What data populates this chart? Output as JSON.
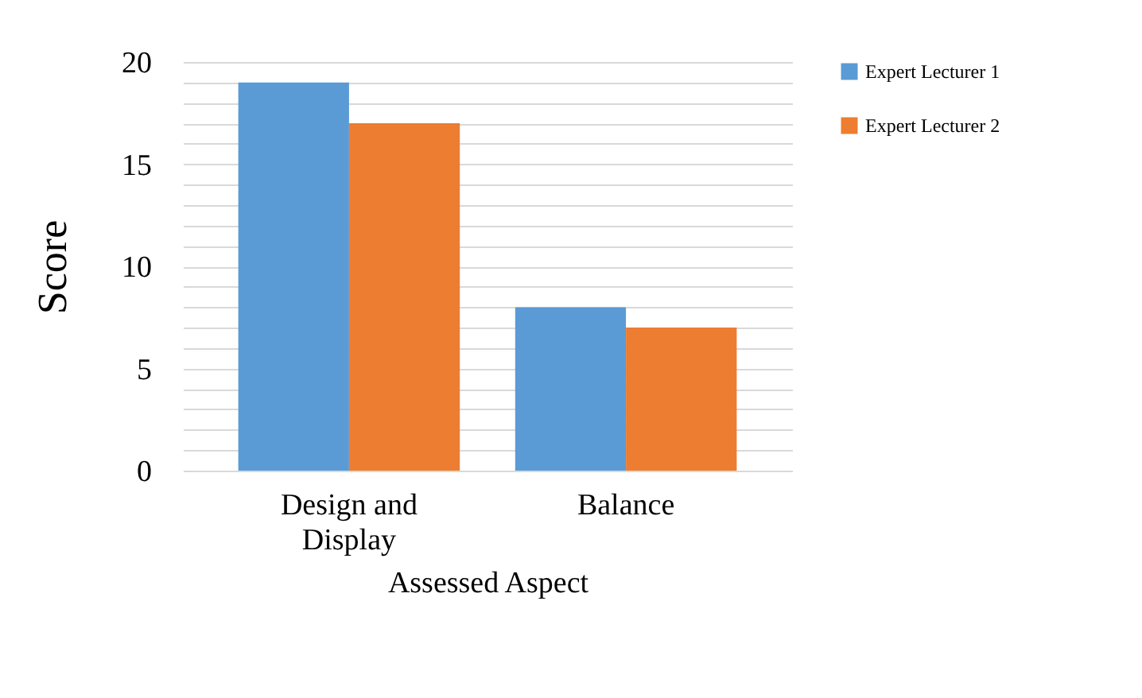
{
  "chart_data": {
    "type": "bar",
    "xlabel": "Assessed Aspect",
    "ylabel": "Score",
    "categories": [
      "Design and Display",
      "Balance"
    ],
    "series": [
      {
        "name": "Expert Lecturer 1",
        "color": "#5b9bd5",
        "values": [
          19,
          8
        ]
      },
      {
        "name": "Expert Lecturer 2",
        "color": "#ed7d31",
        "values": [
          17,
          7
        ]
      }
    ],
    "ylim": [
      0,
      20
    ],
    "yticks": [
      0,
      {
        "value": 1,
        "label": null
      },
      {
        "value": 2,
        "label": null
      },
      {
        "value": 3,
        "label": null
      },
      {
        "value": 4,
        "label": null
      },
      5,
      {
        "value": 6,
        "label": null
      },
      {
        "value": 7,
        "label": null
      },
      {
        "value": 8,
        "label": null
      },
      {
        "value": 9,
        "label": null
      },
      10,
      {
        "value": 11,
        "label": null
      },
      {
        "value": 12,
        "label": null
      },
      {
        "value": 13,
        "label": null
      },
      {
        "value": 14,
        "label": null
      },
      15,
      {
        "value": 16,
        "label": null
      },
      {
        "value": 17,
        "label": null
      },
      {
        "value": 18,
        "label": null
      },
      {
        "value": 19,
        "label": null
      },
      20
    ],
    "grid": "y",
    "legend": "right"
  }
}
